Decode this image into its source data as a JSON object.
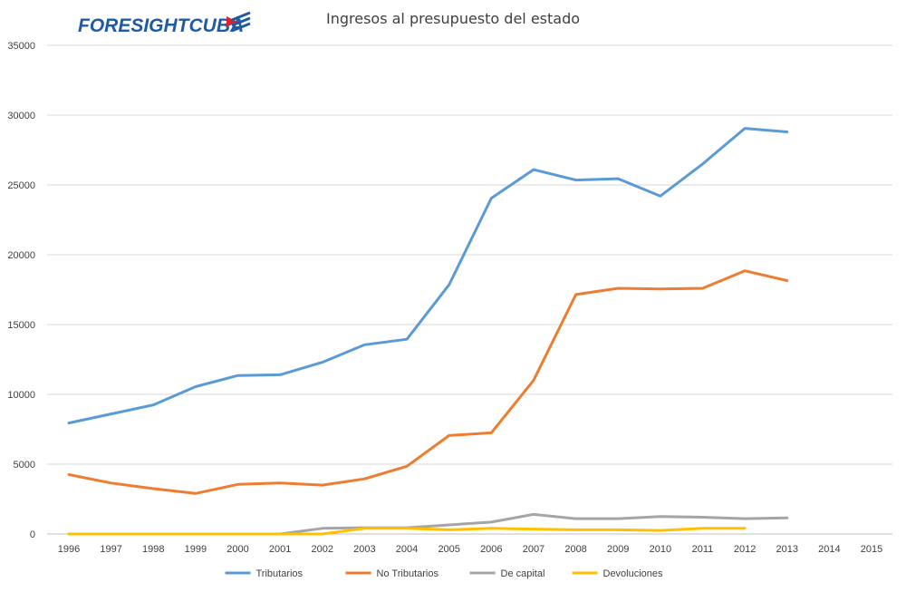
{
  "logo": {
    "text": "FORESIGHTCUBA"
  },
  "chart_data": {
    "type": "line",
    "title": "Ingresos al presupuesto del estado",
    "xlabel": "",
    "ylabel": "",
    "ylim": [
      0,
      35000
    ],
    "yticks": [
      0,
      5000,
      10000,
      15000,
      20000,
      25000,
      30000,
      35000
    ],
    "grid": true,
    "legend_position": "bottom",
    "categories": [
      "1996",
      "1997",
      "1998",
      "1999",
      "2000",
      "2001",
      "2002",
      "2003",
      "2004",
      "2005",
      "2006",
      "2007",
      "2008",
      "2009",
      "2010",
      "2011",
      "2012",
      "2013",
      "2014",
      "2015"
    ],
    "series": [
      {
        "name": "Tributarios",
        "color": "#5b9bd5",
        "values": [
          7950,
          8600,
          9250,
          10550,
          11350,
          11400,
          12300,
          13550,
          13950,
          17850,
          24050,
          26100,
          25350,
          25450,
          24200,
          26500,
          29050,
          28800,
          null,
          null
        ]
      },
      {
        "name": "No Tributarios",
        "color": "#ed7d31",
        "values": [
          4250,
          3650,
          3250,
          2900,
          3550,
          3650,
          3500,
          3950,
          4850,
          7050,
          7250,
          11000,
          17150,
          17600,
          17550,
          17600,
          18850,
          18150,
          null,
          null
        ]
      },
      {
        "name": "De capital",
        "color": "#a5a5a5",
        "values": [
          null,
          null,
          null,
          null,
          null,
          0,
          400,
          450,
          450,
          650,
          850,
          1400,
          1100,
          1100,
          1250,
          1200,
          1100,
          1150,
          null,
          null
        ]
      },
      {
        "name": "Devoluciones",
        "color": "#ffc000",
        "values": [
          0,
          0,
          0,
          0,
          0,
          0,
          0,
          400,
          400,
          300,
          400,
          350,
          300,
          300,
          250,
          400,
          400,
          null,
          null,
          null
        ]
      }
    ]
  }
}
